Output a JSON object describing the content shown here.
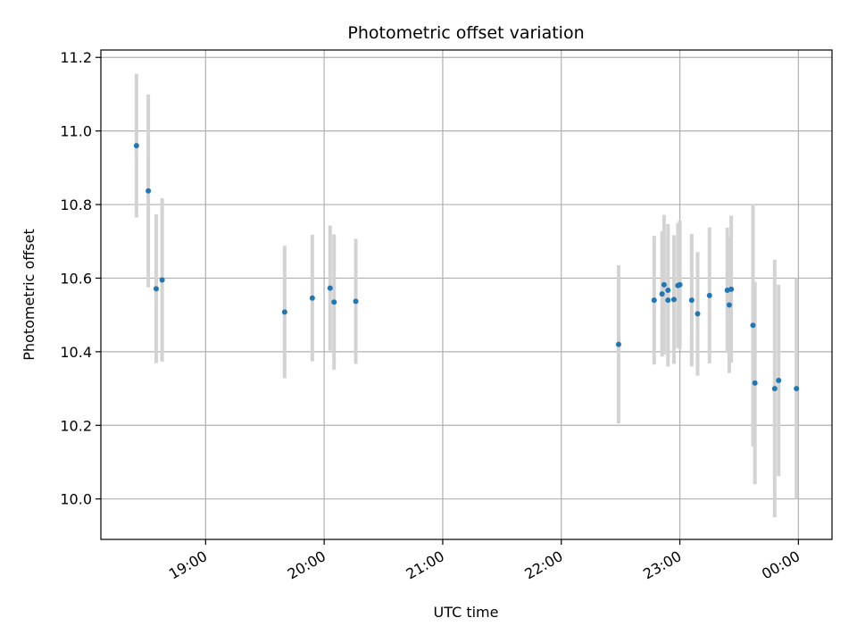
{
  "chart_data": {
    "type": "scatter",
    "title": "Photometric offset variation",
    "xlabel": "UTC time",
    "ylabel": "Photometric offset",
    "x_ticks": [
      "19:00",
      "20:00",
      "21:00",
      "22:00",
      "23:00",
      "00:00"
    ],
    "y_ticks": [
      "10.0",
      "10.2",
      "10.4",
      "10.6",
      "10.8",
      "11.0",
      "11.2"
    ],
    "xlim": [
      "18:07",
      "00:17"
    ],
    "ylim": [
      9.89,
      11.22
    ],
    "grid": true,
    "colors": {
      "point": "#1f77b4",
      "error_bar": "#d3d3d3",
      "grid": "#b0b0b0"
    },
    "points": [
      {
        "x": "18:25",
        "y": 10.96,
        "yerr": 0.195
      },
      {
        "x": "18:31",
        "y": 10.837,
        "yerr": 0.262
      },
      {
        "x": "18:35",
        "y": 10.571,
        "yerr": 0.202
      },
      {
        "x": "18:38",
        "y": 10.595,
        "yerr": 0.222
      },
      {
        "x": "19:40",
        "y": 10.508,
        "yerr": 0.18
      },
      {
        "x": "19:54",
        "y": 10.546,
        "yerr": 0.172
      },
      {
        "x": "20:03",
        "y": 10.573,
        "yerr": 0.17
      },
      {
        "x": "20:05",
        "y": 10.535,
        "yerr": 0.184
      },
      {
        "x": "20:16",
        "y": 10.537,
        "yerr": 0.17
      },
      {
        "x": "22:29",
        "y": 10.42,
        "yerr": 0.215
      },
      {
        "x": "22:47",
        "y": 10.54,
        "yerr": 0.175
      },
      {
        "x": "22:51",
        "y": 10.557,
        "yerr": 0.17
      },
      {
        "x": "22:52",
        "y": 10.582,
        "yerr": 0.19
      },
      {
        "x": "22:54",
        "y": 10.54,
        "yerr": 0.18
      },
      {
        "x": "22:54",
        "y": 10.567,
        "yerr": 0.18
      },
      {
        "x": "22:57",
        "y": 10.542,
        "yerr": 0.175
      },
      {
        "x": "22:59",
        "y": 10.58,
        "yerr": 0.17
      },
      {
        "x": "23:00",
        "y": 10.582,
        "yerr": 0.175
      },
      {
        "x": "23:06",
        "y": 10.54,
        "yerr": 0.18
      },
      {
        "x": "23:09",
        "y": 10.503,
        "yerr": 0.168
      },
      {
        "x": "23:15",
        "y": 10.553,
        "yerr": 0.185
      },
      {
        "x": "23:24",
        "y": 10.567,
        "yerr": 0.17
      },
      {
        "x": "23:25",
        "y": 10.527,
        "yerr": 0.185
      },
      {
        "x": "23:26",
        "y": 10.57,
        "yerr": 0.2
      },
      {
        "x": "23:37",
        "y": 10.472,
        "yerr": 0.33
      },
      {
        "x": "23:38",
        "y": 10.315,
        "yerr": 0.275
      },
      {
        "x": "23:48",
        "y": 10.3,
        "yerr": 0.35
      },
      {
        "x": "23:50",
        "y": 10.322,
        "yerr": 0.26
      },
      {
        "x": "23:59",
        "y": 10.3,
        "yerr": 0.3
      }
    ]
  }
}
